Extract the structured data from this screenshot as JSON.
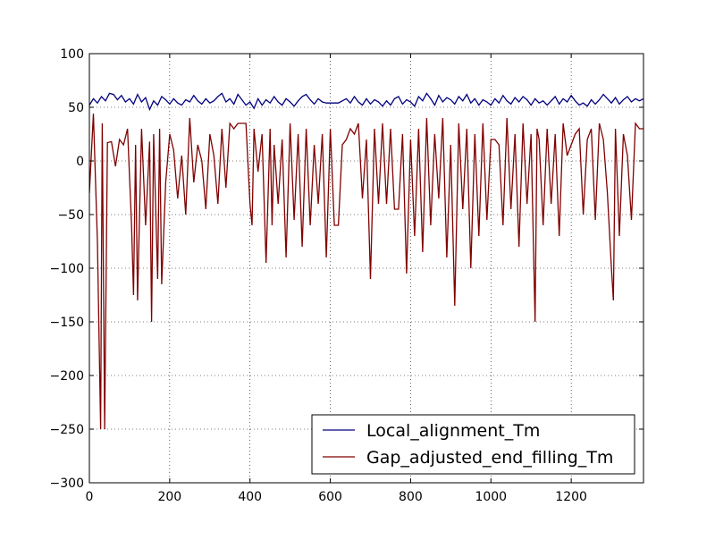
{
  "chart_data": {
    "type": "line",
    "title": "",
    "xlabel": "",
    "ylabel": "",
    "xlim": [
      0,
      1380
    ],
    "ylim": [
      -300,
      100
    ],
    "xticks": [
      0,
      200,
      400,
      600,
      800,
      1000,
      1200
    ],
    "xtick_labels": [
      "0",
      "200",
      "400",
      "600",
      "800",
      "1000",
      "1200"
    ],
    "yticks": [
      100,
      50,
      0,
      -50,
      -100,
      -150,
      -200,
      -250,
      -300
    ],
    "ytick_labels": [
      "100",
      "50",
      "0",
      "−50",
      "−100",
      "−150",
      "−200",
      "−250",
      "−300"
    ],
    "grid": true,
    "legend_position": "bottom-right",
    "series": [
      {
        "name": "Local_alignment_Tm",
        "color": "#000080",
        "x": [
          0,
          10,
          20,
          30,
          40,
          50,
          60,
          70,
          80,
          90,
          100,
          110,
          120,
          130,
          140,
          150,
          160,
          170,
          180,
          190,
          200,
          210,
          220,
          230,
          240,
          250,
          260,
          270,
          280,
          290,
          300,
          310,
          320,
          330,
          340,
          350,
          360,
          370,
          380,
          390,
          400,
          410,
          420,
          430,
          440,
          450,
          460,
          470,
          480,
          490,
          500,
          510,
          520,
          530,
          540,
          550,
          560,
          570,
          580,
          590,
          600,
          610,
          620,
          630,
          640,
          650,
          660,
          670,
          680,
          690,
          700,
          710,
          720,
          730,
          740,
          750,
          760,
          770,
          780,
          790,
          800,
          810,
          820,
          830,
          840,
          850,
          860,
          870,
          880,
          890,
          900,
          910,
          920,
          930,
          940,
          950,
          960,
          970,
          980,
          990,
          1000,
          1010,
          1020,
          1030,
          1040,
          1050,
          1060,
          1070,
          1080,
          1090,
          1100,
          1110,
          1120,
          1130,
          1140,
          1150,
          1160,
          1170,
          1180,
          1190,
          1200,
          1210,
          1220,
          1230,
          1240,
          1250,
          1260,
          1270,
          1280,
          1290,
          1300,
          1310,
          1320,
          1330,
          1340,
          1350,
          1360,
          1370,
          1380
        ],
        "values": [
          52,
          58,
          54,
          60,
          56,
          63,
          62,
          57,
          61,
          55,
          58,
          53,
          62,
          55,
          59,
          48,
          56,
          52,
          60,
          57,
          53,
          58,
          54,
          52,
          57,
          55,
          61,
          56,
          53,
          58,
          54,
          56,
          60,
          63,
          55,
          58,
          53,
          62,
          57,
          52,
          55,
          49,
          58,
          52,
          57,
          54,
          60,
          55,
          52,
          58,
          55,
          51,
          56,
          60,
          62,
          57,
          53,
          58,
          55,
          54,
          54,
          54,
          54,
          56,
          58,
          54,
          60,
          55,
          52,
          58,
          53,
          57,
          55,
          51,
          56,
          52,
          58,
          60,
          53,
          57,
          55,
          51,
          60,
          56,
          63,
          58,
          52,
          61,
          55,
          59,
          57,
          53,
          60,
          56,
          62,
          54,
          58,
          52,
          57,
          55,
          52,
          58,
          54,
          61,
          56,
          53,
          59,
          55,
          60,
          57,
          52,
          58,
          54,
          56,
          52,
          56,
          60,
          53,
          58,
          55,
          61,
          56,
          52,
          54,
          51,
          57,
          53,
          57,
          62,
          58,
          54,
          59,
          53,
          57,
          60,
          55,
          58,
          56,
          58
        ]
      },
      {
        "name": "Gap_adjusted_end_filling_Tm",
        "color": "#800000",
        "x": [
          0,
          10,
          20,
          28,
          32,
          38,
          45,
          55,
          65,
          75,
          85,
          95,
          105,
          110,
          115,
          120,
          130,
          140,
          150,
          155,
          160,
          170,
          175,
          180,
          190,
          200,
          210,
          220,
          230,
          240,
          250,
          260,
          270,
          280,
          290,
          300,
          310,
          320,
          330,
          340,
          350,
          360,
          370,
          380,
          390,
          400,
          405,
          410,
          420,
          430,
          440,
          450,
          455,
          460,
          470,
          480,
          490,
          500,
          510,
          520,
          530,
          540,
          550,
          560,
          570,
          580,
          590,
          600,
          610,
          620,
          630,
          640,
          650,
          660,
          670,
          680,
          690,
          700,
          710,
          720,
          730,
          740,
          750,
          760,
          770,
          780,
          790,
          800,
          810,
          820,
          830,
          840,
          850,
          860,
          870,
          880,
          890,
          900,
          910,
          920,
          930,
          940,
          950,
          960,
          970,
          980,
          990,
          1000,
          1010,
          1020,
          1030,
          1040,
          1050,
          1060,
          1070,
          1080,
          1090,
          1100,
          1110,
          1115,
          1120,
          1130,
          1140,
          1150,
          1160,
          1170,
          1180,
          1190,
          1200,
          1210,
          1220,
          1230,
          1240,
          1250,
          1260,
          1270,
          1280,
          1290,
          1300,
          1305,
          1310,
          1320,
          1330,
          1340,
          1350,
          1360,
          1370,
          1380
        ],
        "values": [
          -30,
          44,
          -75,
          -250,
          35,
          -250,
          17,
          18,
          -5,
          20,
          15,
          30,
          -60,
          -125,
          15,
          -130,
          30,
          -60,
          18,
          -150,
          25,
          -110,
          30,
          -115,
          -20,
          25,
          10,
          -35,
          5,
          -50,
          40,
          -20,
          15,
          0,
          -45,
          25,
          5,
          -40,
          30,
          -25,
          35,
          30,
          35,
          35,
          35,
          -40,
          -60,
          30,
          -10,
          25,
          -95,
          30,
          -60,
          15,
          -40,
          20,
          -90,
          35,
          -55,
          25,
          -80,
          30,
          -60,
          15,
          -40,
          25,
          -90,
          30,
          -60,
          -60,
          15,
          20,
          30,
          25,
          35,
          -35,
          20,
          -110,
          30,
          -40,
          35,
          -40,
          30,
          -45,
          -45,
          25,
          -105,
          20,
          -70,
          30,
          -85,
          40,
          -60,
          25,
          -35,
          40,
          -90,
          15,
          -135,
          35,
          -45,
          30,
          -100,
          25,
          -70,
          35,
          -55,
          20,
          20,
          15,
          -60,
          40,
          -45,
          25,
          -80,
          35,
          -40,
          25,
          -150,
          30,
          20,
          -60,
          30,
          -40,
          25,
          -70,
          35,
          5,
          15,
          25,
          30,
          -50,
          20,
          30,
          -55,
          35,
          20,
          -30,
          -100,
          -130,
          30,
          -70,
          25,
          5,
          -55,
          35,
          30,
          30
        ]
      }
    ]
  }
}
